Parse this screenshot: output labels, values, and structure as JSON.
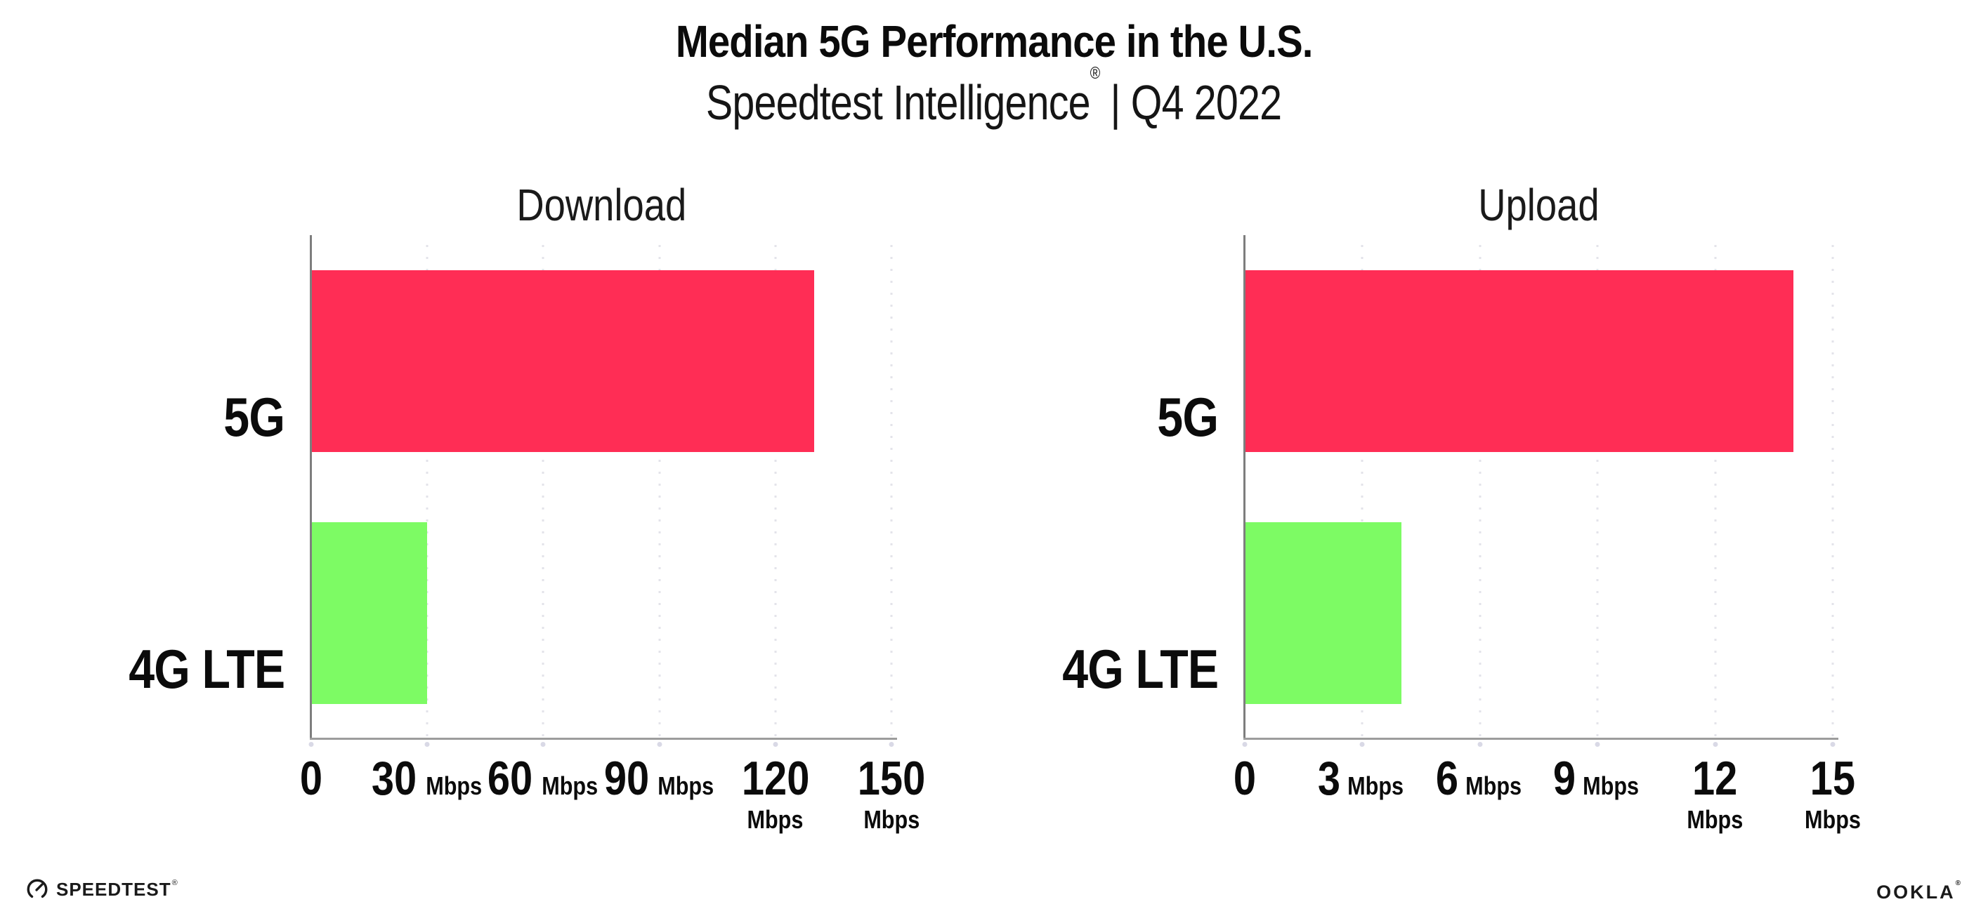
{
  "header": {
    "title": "Median 5G Performance in the U.S.",
    "subtitle_product": "Speedtest Intelligence",
    "subtitle_mark": "®",
    "subtitle_rest": " | Q4 2022"
  },
  "chart_data": [
    {
      "type": "bar",
      "orientation": "horizontal",
      "title": "Download",
      "categories": [
        "5G",
        "4G LTE"
      ],
      "values": [
        130,
        30
      ],
      "unit": "Mbps",
      "xlim": [
        0,
        150
      ],
      "xticks": [
        0,
        30,
        60,
        90,
        120,
        150
      ],
      "xtick_labels": [
        {
          "num": "0",
          "unit": ""
        },
        {
          "num": "30",
          "unit": "Mbps"
        },
        {
          "num": "60",
          "unit": "Mbps"
        },
        {
          "num": "90",
          "unit": "Mbps"
        },
        {
          "num": "120",
          "unit": "Mbps"
        },
        {
          "num": "150",
          "unit": "Mbps"
        }
      ],
      "bar_colors": [
        "#FF2D55",
        "#7DFB64"
      ],
      "grid": "vertical-dotted",
      "legend": "none"
    },
    {
      "type": "bar",
      "orientation": "horizontal",
      "title": "Upload",
      "categories": [
        "5G",
        "4G LTE"
      ],
      "values": [
        14,
        4
      ],
      "unit": "Mbps",
      "xlim": [
        0,
        15
      ],
      "xticks": [
        0,
        3,
        6,
        9,
        12,
        15
      ],
      "xtick_labels": [
        {
          "num": "0",
          "unit": ""
        },
        {
          "num": "3",
          "unit": "Mbps"
        },
        {
          "num": "6",
          "unit": "Mbps"
        },
        {
          "num": "9",
          "unit": "Mbps"
        },
        {
          "num": "12",
          "unit": "Mbps"
        },
        {
          "num": "15",
          "unit": "Mbps"
        }
      ],
      "bar_colors": [
        "#FF2D55",
        "#7DFB64"
      ],
      "grid": "vertical-dotted",
      "legend": "none"
    }
  ],
  "footer": {
    "speedtest_label": "SPEEDTEST",
    "speedtest_mark": "®",
    "ookla_label": "OOKLA",
    "ookla_mark": "®"
  },
  "colors": {
    "bar_5g": "#FF2D55",
    "bar_4g": "#7DFB64",
    "axis": "#9C9C9C",
    "grid_dots": "#E3E3EA",
    "text": "#111111",
    "background": "#FFFFFF"
  }
}
